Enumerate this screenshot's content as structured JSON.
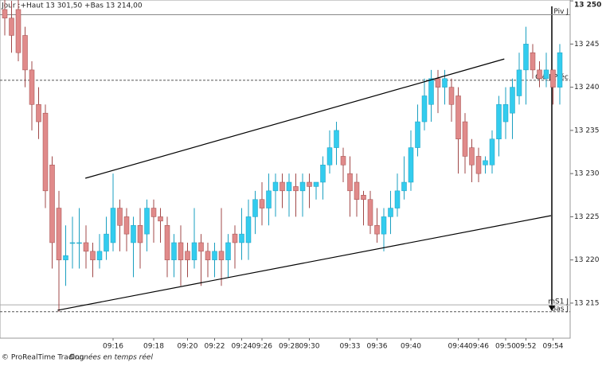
{
  "chart_data": {
    "type": "candlestick",
    "header": "Jour :+Haut 13 301,50 +Bas 13 214,00",
    "footer": "© ProRealTime Trading",
    "footer_note": "Données en temps réel",
    "up_color": "#33ccee",
    "down_color": "#e08a8a",
    "categories": [
      null,
      null,
      null,
      null,
      null,
      null,
      null,
      null,
      null,
      null,
      null,
      null,
      null,
      null,
      null,
      null,
      "09:16",
      null,
      null,
      null,
      null,
      null,
      "09:18",
      null,
      null,
      null,
      null,
      "09:20",
      null,
      null,
      null,
      "09:22",
      null,
      null,
      null,
      "09:24",
      null,
      null,
      "09:26",
      null,
      null,
      null,
      "09:28",
      null,
      null,
      "09:30",
      null,
      null,
      null,
      null,
      null,
      "09:33",
      null,
      null,
      null,
      "09:36",
      null,
      null,
      null,
      null,
      "09:40",
      null,
      null,
      null,
      null,
      null,
      null,
      "09:44",
      null,
      null,
      "09:46",
      null,
      null,
      null,
      "09:50",
      null,
      null,
      "09:52",
      null,
      null,
      null,
      "09:54",
      null
    ],
    "open": [
      13249,
      13248,
      13249,
      13246,
      13242,
      13238,
      13237,
      13231,
      13226,
      13220,
      13222,
      13222,
      13222,
      13221,
      13220,
      13221,
      13222,
      13226,
      13225,
      13222,
      13224,
      13223,
      13226,
      13225,
      13224,
      13220,
      13222,
      13221,
      13220,
      13222,
      13221,
      13220,
      13221,
      13220,
      13223,
      13222,
      13222,
      13225,
      13227,
      13226,
      13228,
      13229,
      13228,
      13228.5,
      13228,
      13229,
      13228.5,
      13229,
      13231,
      13233,
      13232,
      13230,
      13229,
      13227.5,
      13227,
      13224,
      13223,
      13225,
      13226,
      13228,
      13229,
      13233,
      13236,
      13238,
      13241,
      13240,
      13240,
      13239,
      13236,
      13233,
      13232,
      13231,
      13231,
      13234,
      13236,
      13237,
      13239,
      13242,
      13244,
      13242,
      13241,
      13242,
      13240
    ],
    "high": [
      13251,
      13250,
      13251,
      13247,
      13243,
      13240,
      13238,
      13232,
      13228,
      13224,
      13225,
      13226,
      13224,
      13222,
      13223,
      13225,
      13230,
      13227,
      13226,
      13225,
      13226,
      13227,
      13227,
      13226,
      13225,
      13223,
      13224,
      13222,
      13226,
      13223,
      13222,
      13222,
      13226,
      13223,
      13224,
      13226,
      13227,
      13228,
      13229,
      13230,
      13230,
      13230,
      13230,
      13230,
      13230,
      13230,
      13229,
      13232,
      13235,
      13236,
      13233,
      13232,
      13230,
      13228,
      13228,
      13226,
      13226,
      13228,
      13230,
      13232,
      13235,
      13238,
      13241,
      13242,
      13242,
      13242,
      13241,
      13240,
      13237,
      13234,
      13233,
      13232,
      13235,
      13239,
      13240,
      13241,
      13244,
      13247,
      13245,
      13243,
      13244,
      13242,
      13245
    ],
    "low": [
      13246,
      13244,
      13243,
      13240,
      13235,
      13234,
      13226,
      13219,
      13214,
      13217,
      13219,
      13219,
      13219,
      13218,
      13219,
      13220,
      13221,
      13221,
      13221,
      13218,
      13219,
      13221,
      13222,
      13222,
      13218,
      13218,
      13217,
      13218,
      13219,
      13217,
      13218,
      13218,
      13217,
      13218,
      13219,
      13220,
      13220,
      13223,
      13224,
      13224,
      13225,
      13226,
      13225,
      13225,
      13225,
      13226,
      13227,
      13227,
      13230,
      13231,
      13229,
      13225,
      13225,
      13224,
      13223,
      13222,
      13221,
      13223,
      13225,
      13227,
      13228,
      13232,
      13235,
      13236,
      13237,
      13238,
      13236,
      13230,
      13230,
      13229,
      13229,
      13230,
      13230,
      13232,
      13234,
      13234,
      13238,
      13238,
      13241,
      13240,
      13240,
      13238,
      13238
    ],
    "close": [
      13248,
      13246,
      13244,
      13242,
      13238,
      13236,
      13228,
      13222,
      13220,
      13220.5,
      13222,
      13222,
      13221,
      13220,
      13221,
      13223,
      13226,
      13224,
      13223,
      13224,
      13222,
      13226,
      13225,
      13224.5,
      13220,
      13222,
      13220,
      13220,
      13222,
      13221,
      13220,
      13221,
      13220,
      13222,
      13222,
      13223,
      13225,
      13227,
      13226,
      13228,
      13229,
      13228,
      13229,
      13228,
      13229,
      13228.5,
      13229,
      13231,
      13233,
      13235,
      13231,
      13228,
      13227,
      13227,
      13224,
      13223,
      13225,
      13226,
      13228,
      13229,
      13233,
      13236,
      13239,
      13241,
      13240,
      13241,
      13238,
      13234,
      13232,
      13231,
      13230,
      13231.5,
      13234,
      13238,
      13238,
      13240,
      13242,
      13245,
      13242,
      13241,
      13242,
      13240,
      13244
    ],
    "ylim": [
      13210.94,
      13250.1
    ],
    "yticks": [
      {
        "value": 13215,
        "label": "13 215"
      },
      {
        "value": 13220,
        "label": "13 220"
      },
      {
        "value": 13225,
        "label": "13 225"
      },
      {
        "value": 13230,
        "label": "13 230"
      },
      {
        "value": 13235,
        "label": "13 235"
      },
      {
        "value": 13240,
        "label": "13 240"
      },
      {
        "value": 13245,
        "label": "13 245"
      },
      {
        "value": 13250,
        "label": "13 250"
      }
    ],
    "levels": [
      {
        "name": "Piv J",
        "value": 13248.4,
        "style": "solid",
        "color": "#888888"
      },
      {
        "name": "Clô J Préc",
        "value": 13240.8,
        "style": "dashed",
        "color": "#555555"
      },
      {
        "name": "mS1 J",
        "value": 13214.8,
        "style": "solid",
        "color": "#aaaaaa"
      },
      {
        "name": "Bas J",
        "value": 13214,
        "style": "dashed",
        "color": "#555555"
      }
    ],
    "trendlines": [
      {
        "x": [
          11.9,
          73.8
        ],
        "y": [
          13229.46,
          13243.27
        ]
      },
      {
        "x": [
          7.8,
          80.7
        ],
        "y": [
          13214.17,
          13225.13
        ]
      }
    ]
  }
}
